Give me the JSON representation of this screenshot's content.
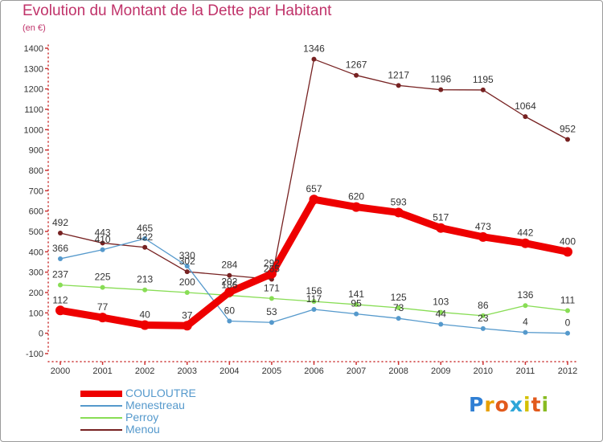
{
  "header": {
    "title": "Evolution du Montant de la Dette par Habitant",
    "subtitle": "(en €)"
  },
  "logo": {
    "text": "Proxiti"
  },
  "chart_data": {
    "type": "line",
    "title": "Evolution du Montant de la Dette par Habitant",
    "subtitle": "(en €)",
    "categories": [
      "2000",
      "2001",
      "2002",
      "2003",
      "2004",
      "2005",
      "2006",
      "2007",
      "2008",
      "2009",
      "2010",
      "2011",
      "2012"
    ],
    "ylim": [
      -100,
      1400
    ],
    "yticks": [
      -100,
      0,
      100,
      200,
      300,
      400,
      500,
      600,
      700,
      800,
      900,
      1000,
      1100,
      1200,
      1300,
      1400
    ],
    "grid": false,
    "legend_position": "bottom-left",
    "series": [
      {
        "name": "COULOUTRE",
        "color": "#ee0000",
        "values": [
          112,
          77,
          40,
          37,
          202,
          292,
          657,
          620,
          593,
          517,
          473,
          442,
          400
        ]
      },
      {
        "name": "Menestreau",
        "color": "#5599cc",
        "values": [
          366,
          410,
          465,
          330,
          60,
          53,
          117,
          95,
          73,
          44,
          23,
          4,
          0
        ]
      },
      {
        "name": "Perroy",
        "color": "#88dd55",
        "values": [
          237,
          225,
          213,
          200,
          186,
          171,
          156,
          141,
          125,
          103,
          86,
          136,
          111
        ]
      },
      {
        "name": "Menou",
        "color": "#772222",
        "values": [
          492,
          443,
          422,
          302,
          284,
          265,
          1346,
          1267,
          1217,
          1196,
          1195,
          1064,
          952
        ]
      }
    ]
  }
}
